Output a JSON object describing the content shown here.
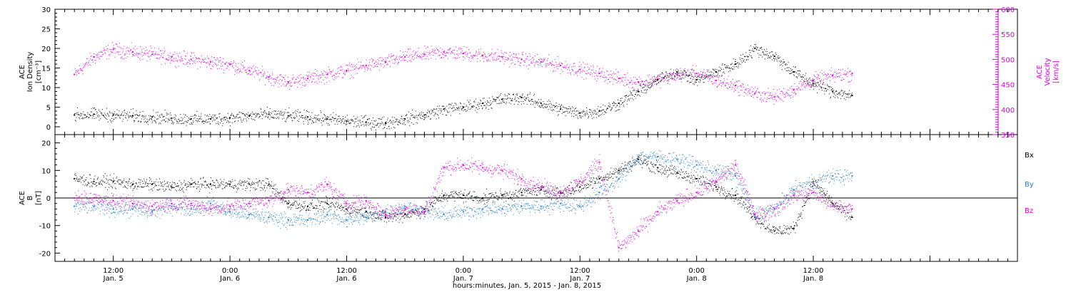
{
  "chart_data": [
    {
      "type": "scatter",
      "panel": "plasma",
      "ylabel_left": [
        "ACE",
        "Ion Density",
        "[cm⁻³]"
      ],
      "ylabel_right": [
        "ACE",
        "Velocity",
        "[km/s]"
      ],
      "ylim_left": [
        -2,
        30
      ],
      "yticks_left": [
        "0",
        "5",
        "10",
        "15",
        "20",
        "25",
        "30"
      ],
      "ylim_right": [
        350,
        600
      ],
      "yticks_right": [
        "350",
        "400",
        "450",
        "500",
        "550",
        "600"
      ],
      "colors": {
        "density": "#000000",
        "velocity": "#e000e0"
      },
      "series": [
        {
          "axis": "left",
          "x": [
            8,
            10,
            12,
            14,
            16,
            18,
            20,
            22,
            24,
            26,
            28,
            30,
            32,
            34,
            36,
            38,
            40,
            42,
            44,
            46,
            48,
            50,
            52,
            54,
            56,
            58,
            60,
            62,
            64,
            66,
            68,
            70,
            72,
            74,
            76,
            78,
            80,
            82,
            84,
            86,
            88
          ],
          "values": [
            3.0,
            3.2,
            3.0,
            2.8,
            2.5,
            2.2,
            2.0,
            2.0,
            2.3,
            2.8,
            3.2,
            2.8,
            2.5,
            2.0,
            1.5,
            1.2,
            1.0,
            2.0,
            3.0,
            4.5,
            5.0,
            6.0,
            7.0,
            7.5,
            6.0,
            4.5,
            3.5,
            4.0,
            6.0,
            9.0,
            12.0,
            14.0,
            12.0,
            14.0,
            16.0,
            20.0,
            18.0,
            14.0,
            11.0,
            9.0,
            8.0
          ]
        },
        {
          "axis": "right",
          "x": [
            8,
            10,
            12,
            14,
            16,
            18,
            20,
            22,
            24,
            26,
            28,
            30,
            32,
            34,
            36,
            38,
            40,
            42,
            44,
            46,
            48,
            50,
            52,
            54,
            56,
            58,
            60,
            62,
            64,
            66,
            68,
            70,
            72,
            74,
            76,
            78,
            80,
            82,
            84,
            86,
            88
          ],
          "values": [
            470,
            505,
            520,
            515,
            510,
            505,
            500,
            495,
            490,
            478,
            465,
            455,
            462,
            470,
            478,
            488,
            495,
            505,
            510,
            515,
            512,
            508,
            505,
            500,
            495,
            488,
            480,
            472,
            462,
            455,
            460,
            470,
            472,
            458,
            448,
            432,
            425,
            440,
            458,
            468,
            472
          ]
        }
      ]
    },
    {
      "type": "scatter",
      "panel": "magnetic-field",
      "ylabel_left": [
        "ACE",
        "B",
        "[nT]"
      ],
      "ylim": [
        -23,
        23
      ],
      "yticks_left": [
        "-20",
        "-10",
        "0",
        "10",
        "20"
      ],
      "legend": [
        "Bx",
        "By",
        "Bz"
      ],
      "colors": {
        "Bx": "#000000",
        "By": "#1e7fd8",
        "Bz": "#e000e0"
      },
      "series": [
        {
          "name": "Bx",
          "x": [
            8,
            10,
            12,
            14,
            16,
            18,
            20,
            22,
            24,
            26,
            28,
            30,
            32,
            34,
            36,
            38,
            40,
            42,
            44,
            46,
            48,
            50,
            52,
            54,
            56,
            58,
            60,
            62,
            64,
            66,
            68,
            70,
            72,
            74,
            76,
            78,
            80,
            82,
            84,
            86,
            88
          ],
          "values": [
            7,
            6,
            6,
            5,
            5,
            4,
            5,
            5,
            5,
            5,
            5,
            -2,
            -3,
            -2,
            -4,
            -5,
            -7,
            -6,
            -4,
            1,
            1,
            0,
            1,
            2,
            3,
            2,
            4,
            7,
            10,
            14,
            11,
            9,
            7,
            4,
            1,
            -7,
            -12,
            -11,
            6,
            -2,
            -7
          ]
        },
        {
          "name": "By",
          "x": [
            8,
            10,
            12,
            14,
            16,
            18,
            20,
            22,
            24,
            26,
            28,
            30,
            32,
            34,
            36,
            38,
            40,
            42,
            44,
            46,
            48,
            50,
            52,
            54,
            56,
            58,
            60,
            62,
            64,
            66,
            68,
            70,
            72,
            74,
            76,
            78,
            80,
            82,
            84,
            86,
            88
          ],
          "values": [
            -3,
            -3,
            -4,
            -4,
            -5,
            -3,
            -4,
            -2,
            -5,
            -6,
            -7,
            -8,
            -8,
            -6,
            -8,
            -7,
            -5,
            -3,
            -5,
            -6,
            -5,
            -4,
            -4,
            -3,
            -3,
            -2,
            -3,
            2,
            7,
            15,
            15,
            14,
            12,
            10,
            8,
            -6,
            -4,
            3,
            6,
            8,
            8
          ]
        },
        {
          "name": "Bz",
          "x": [
            8,
            10,
            12,
            14,
            16,
            18,
            20,
            22,
            24,
            26,
            28,
            30,
            32,
            34,
            36,
            38,
            40,
            42,
            44,
            46,
            48,
            50,
            52,
            54,
            56,
            58,
            60,
            62,
            64,
            66,
            68,
            70,
            72,
            74,
            76,
            78,
            80,
            82,
            84,
            86,
            88
          ],
          "values": [
            0,
            0,
            -1,
            -2,
            -3,
            -2,
            -2,
            -4,
            -3,
            -2,
            -1,
            3,
            2,
            5,
            -2,
            -1,
            -6,
            -4,
            -5,
            11,
            12,
            11,
            10,
            7,
            4,
            2,
            6,
            13,
            -18,
            -12,
            -5,
            -1,
            2,
            6,
            12,
            -6,
            -4,
            1,
            2,
            -3,
            -4
          ]
        }
      ]
    }
  ],
  "axis": {
    "xlim_hours": [
      6,
      105
    ],
    "xlabel": "hours:minutes, Jan.  5, 2015 - Jan.  8, 2015",
    "ticks": [
      {
        "hour": 12,
        "time": "12:00",
        "date": "Jan. 5"
      },
      {
        "hour": 24,
        "time": "0:00",
        "date": "Jan. 6"
      },
      {
        "hour": 36,
        "time": "12:00",
        "date": "Jan. 6"
      },
      {
        "hour": 48,
        "time": "0:00",
        "date": "Jan. 7"
      },
      {
        "hour": 60,
        "time": "12:00",
        "date": "Jan. 7"
      },
      {
        "hour": 72,
        "time": "0:00",
        "date": "Jan. 8"
      },
      {
        "hour": 84,
        "time": "12:00",
        "date": "Jan. 8"
      }
    ]
  }
}
